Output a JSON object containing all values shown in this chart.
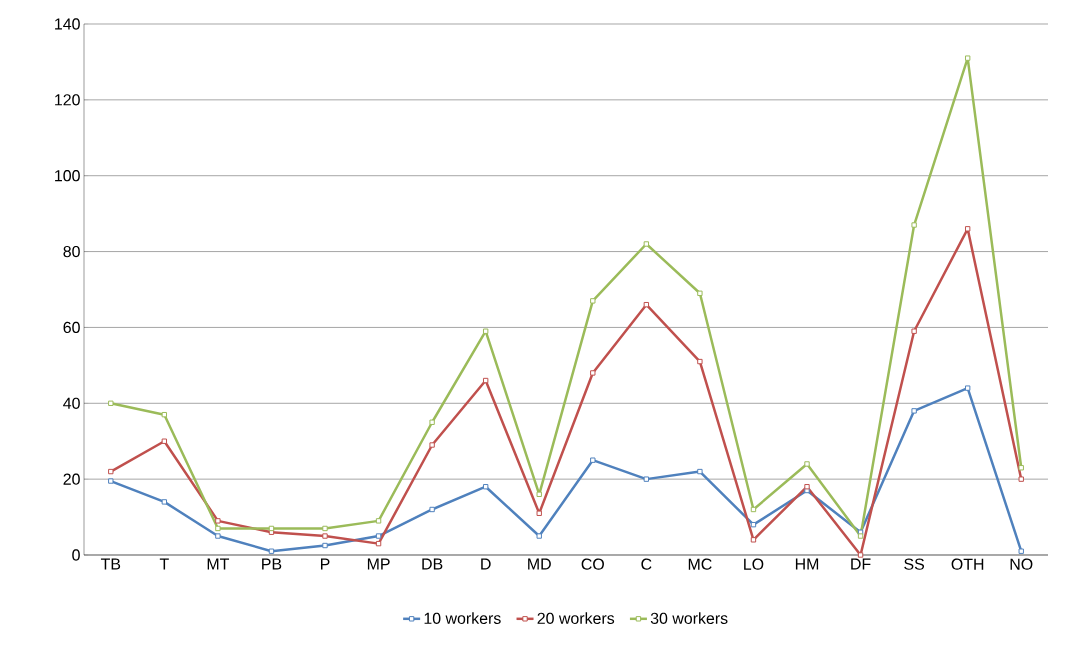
{
  "chart_data": {
    "type": "line",
    "categories": [
      "TB",
      "T",
      "MT",
      "PB",
      "P",
      "MP",
      "DB",
      "D",
      "MD",
      "CO",
      "C",
      "MC",
      "LO",
      "HM",
      "DF",
      "SS",
      "OTH",
      "NO"
    ],
    "series": [
      {
        "name": "10 workers",
        "color": "#4f81bd",
        "values": [
          19.5,
          14,
          5,
          1,
          2.5,
          5,
          12,
          18,
          5,
          25,
          20,
          22,
          8,
          17,
          6,
          38,
          44,
          1
        ]
      },
      {
        "name": "20 workers",
        "color": "#c0504d",
        "values": [
          22,
          30,
          9,
          6,
          5,
          3,
          29,
          46,
          11,
          48,
          66,
          51,
          4,
          18,
          0,
          59,
          86,
          20
        ]
      },
      {
        "name": "30 workers",
        "color": "#9bbb59",
        "values": [
          40,
          37,
          7,
          7,
          7,
          9,
          35,
          59,
          16,
          67,
          82,
          69,
          12,
          24,
          5,
          87,
          131,
          23
        ]
      }
    ],
    "ylim": [
      0,
      140
    ],
    "yticks": [
      0,
      20,
      40,
      60,
      80,
      100,
      120,
      140
    ],
    "grid": "y",
    "legend": "bottom",
    "marker": "square",
    "line_style": "solid"
  }
}
